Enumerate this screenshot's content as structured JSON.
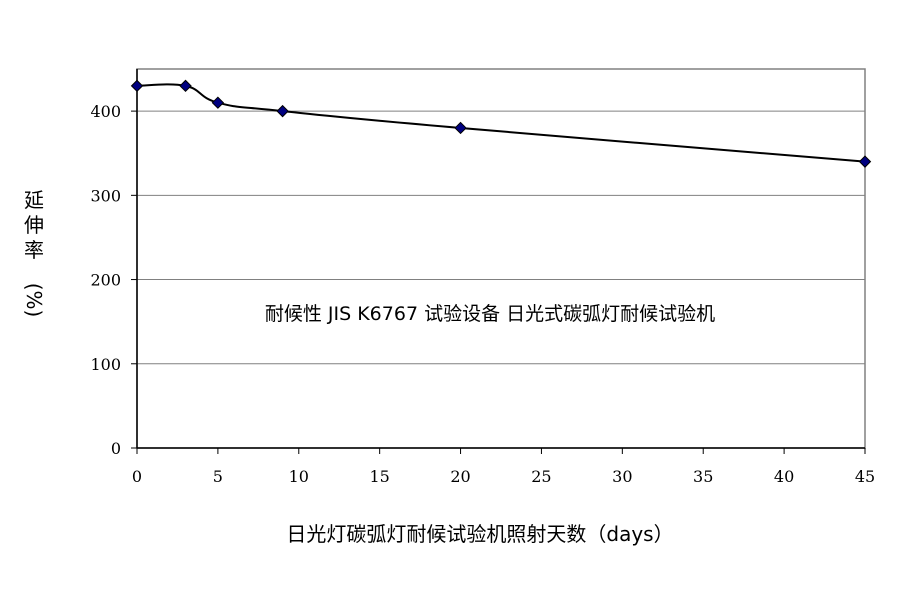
{
  "chart_data": {
    "type": "line",
    "title": "",
    "annotation": "耐候性 JIS K6767 试验设备 日光式碳弧灯耐候试验机",
    "xlabel": "日光灯碳弧灯耐候试验机照射天数（days）",
    "ylabel": "延伸率（%）",
    "ylabel_chars": [
      "延",
      "伸",
      "率",
      "(%)"
    ],
    "xlim": [
      0,
      45
    ],
    "ylim": [
      0,
      450
    ],
    "xticks": [
      0,
      5,
      10,
      15,
      20,
      25,
      30,
      35,
      40,
      45
    ],
    "yticks": [
      0,
      100,
      200,
      300,
      400
    ],
    "grid": "horizontal",
    "legend": "none",
    "series": [
      {
        "x": [
          0,
          3,
          5,
          9,
          20,
          45
        ],
        "y": [
          430,
          430,
          410,
          400,
          380,
          340
        ]
      }
    ],
    "colors": {
      "line": "#000000",
      "marker": "#000080",
      "grid": "#808080",
      "frame": "#808080"
    }
  }
}
